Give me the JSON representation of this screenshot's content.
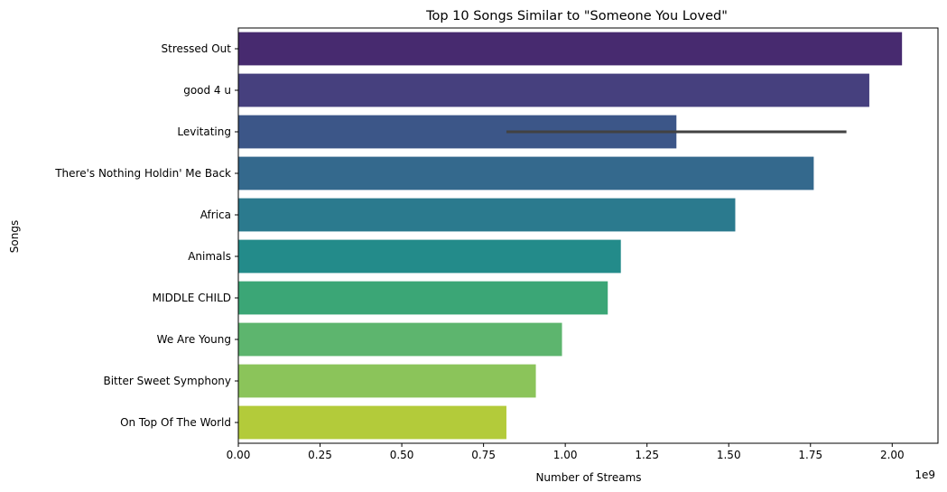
{
  "chart_data": {
    "type": "bar",
    "orientation": "horizontal",
    "title": "Top 10 Songs Similar to \"Someone You Loved\"",
    "xlabel": "Number of Streams",
    "ylabel": "Songs",
    "x_scale_label": "1e9",
    "xlim": [
      0,
      2.14
    ],
    "x_ticks": [
      0.0,
      0.25,
      0.5,
      0.75,
      1.0,
      1.25,
      1.5,
      1.75,
      2.0
    ],
    "x_tick_labels": [
      "0.00",
      "0.25",
      "0.50",
      "0.75",
      "1.00",
      "1.25",
      "1.50",
      "1.75",
      "2.00"
    ],
    "categories": [
      "Stressed Out",
      "good 4 u",
      "Levitating",
      "There's Nothing Holdin' Me Back",
      "Africa",
      "Animals",
      "MIDDLE CHILD",
      "We Are Young",
      "Bitter Sweet Symphony",
      "On Top Of The World"
    ],
    "values": [
      2.03,
      1.93,
      1.34,
      1.76,
      1.52,
      1.17,
      1.13,
      0.99,
      0.91,
      0.82
    ],
    "error_bars": [
      null,
      null,
      [
        0.82,
        1.86
      ],
      null,
      null,
      null,
      null,
      null,
      null,
      null
    ],
    "colors": [
      "#472a6f",
      "#46407e",
      "#3c5688",
      "#34698d",
      "#2b7a8e",
      "#238b8a",
      "#3ba676",
      "#5db56e",
      "#8bc45a",
      "#b3cb3a"
    ],
    "grid": false
  }
}
